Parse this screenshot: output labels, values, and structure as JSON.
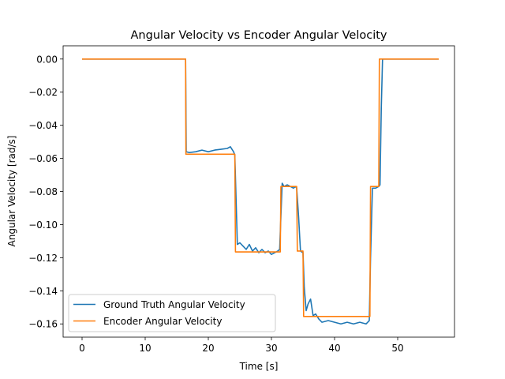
{
  "chart_data": {
    "type": "line",
    "title": "Angular Velocity vs Encoder Angular Velocity",
    "xlabel": "Time [s]",
    "ylabel": "Angular Velocity [rad/s]",
    "xlim": [
      -3,
      59
    ],
    "ylim": [
      -0.168,
      0.008
    ],
    "x_ticks": [
      0,
      10,
      20,
      30,
      40,
      50
    ],
    "x_tick_labels": [
      "0",
      "10",
      "20",
      "30",
      "40",
      "50"
    ],
    "y_ticks": [
      0,
      -0.02,
      -0.04,
      -0.06,
      -0.08,
      -0.1,
      -0.12,
      -0.14,
      -0.16
    ],
    "y_tick_labels": [
      "0.00",
      "−0.02",
      "−0.04",
      "−0.06",
      "−0.08",
      "−0.10",
      "−0.12",
      "−0.14",
      "−0.16"
    ],
    "grid": false,
    "legend_position": "lower-left",
    "series": [
      {
        "name": "Ground Truth Angular Velocity",
        "color": "#1f77b4",
        "x": [
          0,
          2,
          4,
          6,
          8,
          10,
          12,
          14,
          16,
          16.4,
          16.5,
          17,
          18,
          19,
          20,
          21,
          22,
          23,
          23.5,
          24,
          24.2,
          24.4,
          24.6,
          25,
          25.5,
          26,
          26.5,
          27,
          27.5,
          28,
          28.5,
          29,
          29.5,
          30,
          30.5,
          31,
          31.3,
          31.5,
          31.7,
          32,
          32.5,
          33,
          33.5,
          33.8,
          34,
          34.3,
          34.6,
          35,
          35.2,
          35.5,
          35.8,
          36.2,
          36.6,
          37,
          37.5,
          38,
          39,
          40,
          41,
          42,
          43,
          44,
          45,
          45.5,
          45.7,
          46,
          46.5,
          47,
          47.2,
          47.4,
          47.6,
          48,
          50,
          52,
          54,
          56.5
        ],
        "y": [
          0,
          0,
          0,
          0,
          0,
          0,
          0,
          0,
          0,
          0,
          -0.056,
          -0.0565,
          -0.056,
          -0.055,
          -0.056,
          -0.055,
          -0.0545,
          -0.054,
          -0.053,
          -0.056,
          -0.058,
          -0.085,
          -0.112,
          -0.111,
          -0.113,
          -0.115,
          -0.112,
          -0.116,
          -0.114,
          -0.117,
          -0.115,
          -0.117,
          -0.116,
          -0.118,
          -0.117,
          -0.116,
          -0.115,
          -0.095,
          -0.075,
          -0.077,
          -0.076,
          -0.077,
          -0.078,
          -0.077,
          -0.078,
          -0.095,
          -0.116,
          -0.117,
          -0.138,
          -0.152,
          -0.148,
          -0.145,
          -0.155,
          -0.154,
          -0.157,
          -0.159,
          -0.158,
          -0.159,
          -0.16,
          -0.159,
          -0.16,
          -0.159,
          -0.16,
          -0.158,
          -0.12,
          -0.078,
          -0.078,
          -0.077,
          -0.076,
          -0.03,
          0,
          0,
          0,
          0,
          0,
          0
        ]
      },
      {
        "name": "Encoder Angular Velocity",
        "color": "#ff7f0e",
        "x": [
          0,
          16.4,
          16.45,
          24.2,
          24.3,
          31.4,
          31.5,
          34.0,
          34.1,
          35.0,
          35.1,
          45.6,
          45.7,
          47.0,
          47.1,
          56.5
        ],
        "y": [
          0,
          0,
          -0.0575,
          -0.0575,
          -0.1165,
          -0.1165,
          -0.077,
          -0.077,
          -0.116,
          -0.116,
          -0.1555,
          -0.1555,
          -0.077,
          -0.077,
          0,
          0
        ]
      }
    ]
  }
}
